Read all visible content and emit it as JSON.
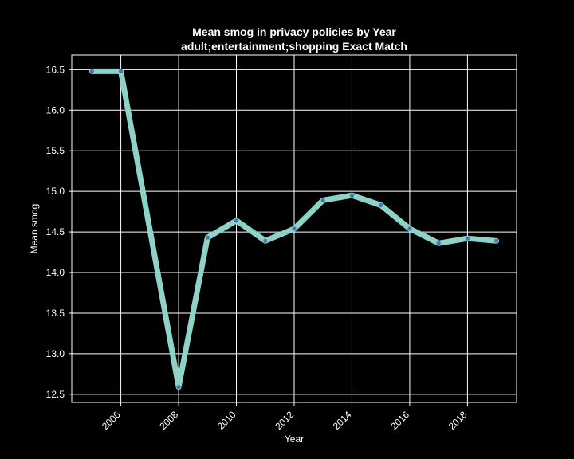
{
  "chart_data": {
    "type": "line",
    "title": "Mean smog in privacy policies by Year",
    "subtitle": "adult;entertainment;shopping Exact Match",
    "xlabel": "Year",
    "ylabel": "Mean smog",
    "x": [
      2005,
      2006,
      2008,
      2009,
      2010,
      2011,
      2012,
      2013,
      2014,
      2015,
      2016,
      2017,
      2018,
      2019
    ],
    "series": [
      {
        "values": [
          16.48,
          16.48,
          12.59,
          14.43,
          14.64,
          14.39,
          14.54,
          14.89,
          14.95,
          14.83,
          14.54,
          14.36,
          14.42,
          14.39
        ]
      }
    ],
    "xticks": [
      "2006",
      "2008",
      "2010",
      "2012",
      "2014",
      "2016",
      "2018"
    ],
    "yticks": [
      "12.5",
      "13.0",
      "13.5",
      "14.0",
      "14.5",
      "15.0",
      "15.5",
      "16.0",
      "16.5"
    ],
    "xlim": [
      2004.3,
      2019.7
    ],
    "ylim": [
      12.4,
      16.68
    ],
    "grid": true,
    "colors": {
      "background": "#000000",
      "line": "#8dd3c7",
      "marker": "#4c72b0",
      "grid": "#ffffff",
      "text": "#ffffff"
    }
  }
}
